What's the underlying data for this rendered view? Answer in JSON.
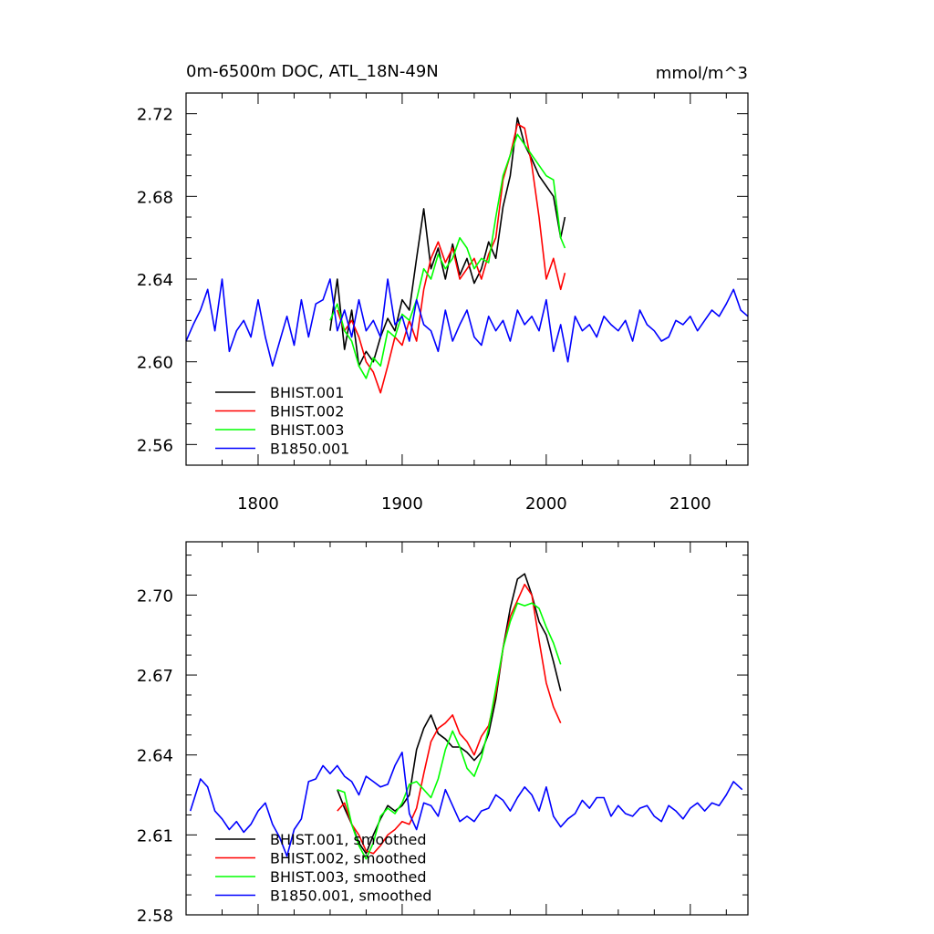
{
  "chart_data": [
    {
      "type": "line",
      "title": "0m-6500m DOC, ATL_18N-49N",
      "units": "mmol/m^3",
      "xlabel": "",
      "ylabel": "",
      "xlim": [
        1750,
        2140
      ],
      "ylim": [
        2.55,
        2.73
      ],
      "xticks": [
        1800,
        1900,
        2000,
        2100
      ],
      "xtick_labels": [
        "1800",
        "1900",
        "2000",
        "2100"
      ],
      "yticks": [
        2.56,
        2.6,
        2.64,
        2.68,
        2.72
      ],
      "ytick_labels": [
        "2.56",
        "2.60",
        "2.64",
        "2.68",
        "2.72"
      ],
      "grid": false,
      "legend": "bottom-left",
      "series": [
        {
          "name": "BHIST.001",
          "color": "#000000",
          "x": [
            1850,
            1855,
            1860,
            1865,
            1870,
            1875,
            1880,
            1885,
            1890,
            1895,
            1900,
            1905,
            1910,
            1915,
            1920,
            1925,
            1930,
            1935,
            1940,
            1945,
            1950,
            1955,
            1960,
            1965,
            1970,
            1975,
            1980,
            1985,
            1990,
            1995,
            2000,
            2005,
            2010,
            2013
          ],
          "y": [
            2.615,
            2.64,
            2.606,
            2.625,
            2.598,
            2.605,
            2.6,
            2.612,
            2.621,
            2.615,
            2.63,
            2.625,
            2.65,
            2.674,
            2.645,
            2.655,
            2.64,
            2.657,
            2.642,
            2.65,
            2.638,
            2.645,
            2.658,
            2.65,
            2.675,
            2.69,
            2.718,
            2.705,
            2.698,
            2.69,
            2.685,
            2.68,
            2.66,
            2.67
          ]
        },
        {
          "name": "BHIST.002",
          "color": "#ff0000",
          "x": [
            1855,
            1860,
            1865,
            1870,
            1875,
            1880,
            1885,
            1890,
            1895,
            1900,
            1905,
            1910,
            1915,
            1920,
            1925,
            1930,
            1935,
            1940,
            1945,
            1950,
            1955,
            1960,
            1965,
            1970,
            1975,
            1980,
            1985,
            1990,
            1995,
            2000,
            2005,
            2010,
            2013
          ],
          "y": [
            2.625,
            2.615,
            2.62,
            2.612,
            2.6,
            2.595,
            2.585,
            2.598,
            2.612,
            2.608,
            2.62,
            2.61,
            2.635,
            2.65,
            2.658,
            2.648,
            2.655,
            2.64,
            2.645,
            2.65,
            2.64,
            2.652,
            2.66,
            2.688,
            2.7,
            2.715,
            2.713,
            2.695,
            2.67,
            2.64,
            2.65,
            2.635,
            2.643
          ]
        },
        {
          "name": "BHIST.003",
          "color": "#00ff00",
          "x": [
            1850,
            1855,
            1860,
            1865,
            1870,
            1875,
            1880,
            1885,
            1890,
            1895,
            1900,
            1905,
            1910,
            1915,
            1920,
            1925,
            1930,
            1935,
            1940,
            1945,
            1950,
            1955,
            1960,
            1965,
            1970,
            1975,
            1980,
            1985,
            1990,
            1995,
            2000,
            2005,
            2010,
            2013
          ],
          "y": [
            2.62,
            2.628,
            2.615,
            2.61,
            2.598,
            2.592,
            2.602,
            2.598,
            2.615,
            2.612,
            2.623,
            2.62,
            2.63,
            2.645,
            2.64,
            2.652,
            2.645,
            2.65,
            2.66,
            2.655,
            2.645,
            2.65,
            2.648,
            2.67,
            2.69,
            2.7,
            2.71,
            2.705,
            2.7,
            2.695,
            2.69,
            2.688,
            2.66,
            2.655
          ]
        },
        {
          "name": "B1850.001",
          "color": "#0000ff",
          "x": [
            1750,
            1755,
            1760,
            1765,
            1770,
            1775,
            1780,
            1785,
            1790,
            1795,
            1800,
            1805,
            1810,
            1815,
            1820,
            1825,
            1830,
            1835,
            1840,
            1845,
            1850,
            1855,
            1860,
            1865,
            1870,
            1875,
            1880,
            1885,
            1890,
            1895,
            1900,
            1905,
            1910,
            1915,
            1920,
            1925,
            1930,
            1935,
            1940,
            1945,
            1950,
            1955,
            1960,
            1965,
            1970,
            1975,
            1980,
            1985,
            1990,
            1995,
            2000,
            2005,
            2010,
            2015,
            2020,
            2025,
            2030,
            2035,
            2040,
            2045,
            2050,
            2055,
            2060,
            2065,
            2070,
            2075,
            2080,
            2085,
            2090,
            2095,
            2100,
            2105,
            2110,
            2115,
            2120,
            2125,
            2130,
            2135,
            2140
          ],
          "y": [
            2.61,
            2.618,
            2.625,
            2.635,
            2.615,
            2.64,
            2.605,
            2.615,
            2.62,
            2.612,
            2.63,
            2.612,
            2.598,
            2.61,
            2.622,
            2.608,
            2.63,
            2.612,
            2.628,
            2.63,
            2.64,
            2.615,
            2.625,
            2.612,
            2.63,
            2.615,
            2.62,
            2.612,
            2.64,
            2.618,
            2.622,
            2.61,
            2.63,
            2.618,
            2.615,
            2.605,
            2.625,
            2.61,
            2.618,
            2.625,
            2.612,
            2.608,
            2.622,
            2.615,
            2.62,
            2.61,
            2.625,
            2.618,
            2.622,
            2.615,
            2.63,
            2.605,
            2.618,
            2.6,
            2.622,
            2.615,
            2.618,
            2.612,
            2.622,
            2.618,
            2.615,
            2.62,
            2.61,
            2.625,
            2.618,
            2.615,
            2.61,
            2.612,
            2.62,
            2.618,
            2.622,
            2.615,
            2.62,
            2.625,
            2.622,
            2.628,
            2.635,
            2.625,
            2.622
          ]
        }
      ],
      "legend_entries": [
        "BHIST.001",
        "BHIST.002",
        "BHIST.003",
        "B1850.001"
      ]
    },
    {
      "type": "line",
      "title": "",
      "xlabel": "",
      "ylabel": "",
      "xlim": [
        1750,
        2140
      ],
      "ylim": [
        2.58,
        2.72
      ],
      "xticks": [
        1800,
        1900,
        2000,
        2100
      ],
      "yticks": [
        2.58,
        2.61,
        2.64,
        2.67,
        2.7
      ],
      "ytick_labels": [
        "2.58",
        "2.61",
        "2.64",
        "2.67",
        "2.70"
      ],
      "grid": false,
      "legend": "bottom-left",
      "series": [
        {
          "name": "BHIST.001, smoothed",
          "color": "#000000",
          "x": [
            1855,
            1860,
            1865,
            1870,
            1875,
            1880,
            1885,
            1890,
            1895,
            1900,
            1905,
            1910,
            1915,
            1920,
            1925,
            1930,
            1935,
            1940,
            1945,
            1950,
            1955,
            1960,
            1965,
            1970,
            1975,
            1980,
            1985,
            1990,
            1995,
            2000,
            2005,
            2010
          ],
          "y": [
            2.627,
            2.62,
            2.614,
            2.607,
            2.603,
            2.61,
            2.616,
            2.621,
            2.619,
            2.621,
            2.625,
            2.642,
            2.65,
            2.655,
            2.648,
            2.646,
            2.643,
            2.643,
            2.641,
            2.638,
            2.641,
            2.648,
            2.661,
            2.68,
            2.695,
            2.706,
            2.708,
            2.7,
            2.69,
            2.685,
            2.675,
            2.664
          ]
        },
        {
          "name": "BHIST.002, smoothed",
          "color": "#ff0000",
          "x": [
            1855,
            1860,
            1865,
            1870,
            1875,
            1880,
            1885,
            1890,
            1895,
            1900,
            1905,
            1910,
            1915,
            1920,
            1925,
            1930,
            1935,
            1940,
            1945,
            1950,
            1955,
            1960,
            1965,
            1970,
            1975,
            1980,
            1985,
            1990,
            1995,
            2000,
            2005,
            2010
          ],
          "y": [
            2.619,
            2.622,
            2.614,
            2.61,
            2.604,
            2.603,
            2.606,
            2.61,
            2.612,
            2.615,
            2.614,
            2.62,
            2.633,
            2.645,
            2.65,
            2.652,
            2.655,
            2.648,
            2.645,
            2.64,
            2.647,
            2.651,
            2.663,
            2.68,
            2.692,
            2.698,
            2.704,
            2.7,
            2.683,
            2.667,
            2.658,
            2.652
          ]
        },
        {
          "name": "BHIST.003, smoothed",
          "color": "#00ff00",
          "x": [
            1855,
            1860,
            1865,
            1870,
            1875,
            1880,
            1885,
            1890,
            1895,
            1900,
            1905,
            1910,
            1915,
            1920,
            1925,
            1930,
            1935,
            1940,
            1945,
            1950,
            1955,
            1960,
            1965,
            1970,
            1975,
            1980,
            1985,
            1990,
            1995,
            2000,
            2005,
            2010
          ],
          "y": [
            2.627,
            2.626,
            2.614,
            2.606,
            2.601,
            2.607,
            2.617,
            2.62,
            2.618,
            2.622,
            2.629,
            2.63,
            2.627,
            2.624,
            2.631,
            2.642,
            2.649,
            2.643,
            2.635,
            2.632,
            2.639,
            2.65,
            2.665,
            2.68,
            2.69,
            2.697,
            2.696,
            2.697,
            2.695,
            2.688,
            2.682,
            2.674
          ]
        },
        {
          "name": "B1850.001, smoothed",
          "color": "#0000ff",
          "x": [
            1753,
            1760,
            1765,
            1770,
            1775,
            1780,
            1785,
            1790,
            1795,
            1800,
            1805,
            1810,
            1815,
            1820,
            1825,
            1830,
            1835,
            1840,
            1845,
            1850,
            1855,
            1860,
            1865,
            1870,
            1875,
            1880,
            1885,
            1890,
            1895,
            1900,
            1905,
            1910,
            1915,
            1920,
            1925,
            1930,
            1935,
            1940,
            1945,
            1950,
            1955,
            1960,
            1965,
            1970,
            1975,
            1980,
            1985,
            1990,
            1995,
            2000,
            2005,
            2010,
            2015,
            2020,
            2025,
            2030,
            2035,
            2040,
            2045,
            2050,
            2055,
            2060,
            2065,
            2070,
            2075,
            2080,
            2085,
            2090,
            2095,
            2100,
            2105,
            2110,
            2115,
            2120,
            2125,
            2130,
            2136
          ],
          "y": [
            2.619,
            2.631,
            2.628,
            2.619,
            2.616,
            2.612,
            2.615,
            2.611,
            2.614,
            2.619,
            2.622,
            2.614,
            2.609,
            2.602,
            2.612,
            2.616,
            2.63,
            2.631,
            2.636,
            2.633,
            2.636,
            2.632,
            2.63,
            2.625,
            2.632,
            2.63,
            2.628,
            2.629,
            2.636,
            2.641,
            2.618,
            2.612,
            2.622,
            2.621,
            2.617,
            2.627,
            2.621,
            2.615,
            2.617,
            2.615,
            2.619,
            2.62,
            2.625,
            2.623,
            2.619,
            2.624,
            2.628,
            2.625,
            2.619,
            2.628,
            2.617,
            2.613,
            2.616,
            2.618,
            2.623,
            2.62,
            2.624,
            2.624,
            2.617,
            2.621,
            2.618,
            2.617,
            2.62,
            2.621,
            2.617,
            2.615,
            2.621,
            2.619,
            2.616,
            2.62,
            2.622,
            2.619,
            2.622,
            2.621,
            2.625,
            2.63,
            2.627
          ]
        }
      ],
      "legend_entries": [
        "BHIST.001, smoothed",
        "BHIST.002, smoothed",
        "BHIST.003, smoothed",
        "B1850.001, smoothed"
      ]
    }
  ]
}
